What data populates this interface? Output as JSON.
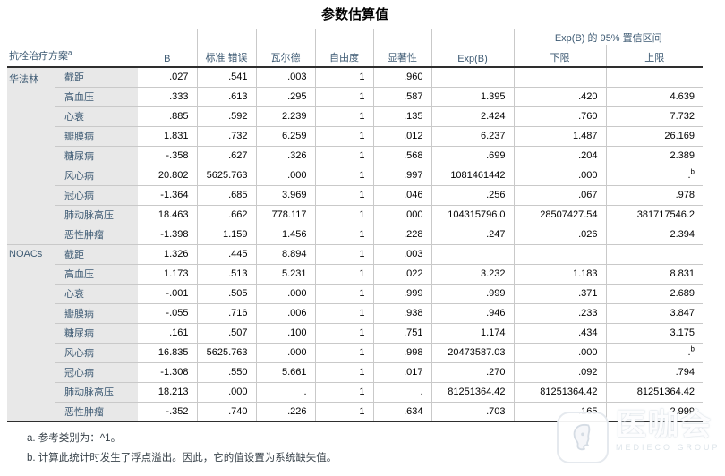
{
  "title": "参数估算值",
  "table": {
    "row_header": "抗栓治疗方案",
    "row_header_sup": "a",
    "columns": [
      "B",
      "标准 错误",
      "瓦尔德",
      "自由度",
      "显著性",
      "Exp(B)"
    ],
    "ci_spanner": "Exp(B) 的 95% 置信区间",
    "ci_lower": "下限",
    "ci_upper": "上限",
    "groups": [
      {
        "name": "华法林",
        "rows": [
          {
            "label": "截距",
            "b": ".027",
            "se": ".541",
            "wald": ".003",
            "df": "1",
            "sig": ".960",
            "exp": "",
            "lower": "",
            "upper": ""
          },
          {
            "label": "高血压",
            "b": ".333",
            "se": ".613",
            "wald": ".295",
            "df": "1",
            "sig": ".587",
            "exp": "1.395",
            "lower": ".420",
            "upper": "4.639"
          },
          {
            "label": "心衰",
            "b": ".885",
            "se": ".592",
            "wald": "2.239",
            "df": "1",
            "sig": ".135",
            "exp": "2.424",
            "lower": ".760",
            "upper": "7.732"
          },
          {
            "label": "瓣膜病",
            "b": "1.831",
            "se": ".732",
            "wald": "6.259",
            "df": "1",
            "sig": ".012",
            "exp": "6.237",
            "lower": "1.487",
            "upper": "26.169"
          },
          {
            "label": "糖尿病",
            "b": "-.358",
            "se": ".627",
            "wald": ".326",
            "df": "1",
            "sig": ".568",
            "exp": ".699",
            "lower": ".204",
            "upper": "2.389"
          },
          {
            "label": "风心病",
            "b": "20.802",
            "se": "5625.763",
            "wald": ".000",
            "df": "1",
            "sig": ".997",
            "exp": "1081461442",
            "lower": ".000",
            "upper": ".",
            "upper_sup": "b"
          },
          {
            "label": "冠心病",
            "b": "-1.364",
            "se": ".685",
            "wald": "3.969",
            "df": "1",
            "sig": ".046",
            "exp": ".256",
            "lower": ".067",
            "upper": ".978"
          },
          {
            "label": "肺动脉高压",
            "b": "18.463",
            "se": ".662",
            "wald": "778.117",
            "df": "1",
            "sig": ".000",
            "exp": "104315796.0",
            "lower": "28507427.54",
            "upper": "381717546.2"
          },
          {
            "label": "恶性肿瘤",
            "b": "-1.398",
            "se": "1.159",
            "wald": "1.456",
            "df": "1",
            "sig": ".228",
            "exp": ".247",
            "lower": ".026",
            "upper": "2.394"
          }
        ]
      },
      {
        "name": "NOACs",
        "rows": [
          {
            "label": "截距",
            "b": "1.326",
            "se": ".445",
            "wald": "8.894",
            "df": "1",
            "sig": ".003",
            "exp": "",
            "lower": "",
            "upper": ""
          },
          {
            "label": "高血压",
            "b": "1.173",
            "se": ".513",
            "wald": "5.231",
            "df": "1",
            "sig": ".022",
            "exp": "3.232",
            "lower": "1.183",
            "upper": "8.831"
          },
          {
            "label": "心衰",
            "b": "-.001",
            "se": ".505",
            "wald": ".000",
            "df": "1",
            "sig": ".999",
            "exp": ".999",
            "lower": ".371",
            "upper": "2.689"
          },
          {
            "label": "瓣膜病",
            "b": "-.055",
            "se": ".716",
            "wald": ".006",
            "df": "1",
            "sig": ".938",
            "exp": ".946",
            "lower": ".233",
            "upper": "3.847"
          },
          {
            "label": "糖尿病",
            "b": ".161",
            "se": ".507",
            "wald": ".100",
            "df": "1",
            "sig": ".751",
            "exp": "1.174",
            "lower": ".434",
            "upper": "3.175"
          },
          {
            "label": "风心病",
            "b": "16.835",
            "se": "5625.763",
            "wald": ".000",
            "df": "1",
            "sig": ".998",
            "exp": "20473587.03",
            "lower": ".000",
            "upper": ".",
            "upper_sup": "b"
          },
          {
            "label": "冠心病",
            "b": "-1.308",
            "se": ".550",
            "wald": "5.661",
            "df": "1",
            "sig": ".017",
            "exp": ".270",
            "lower": ".092",
            "upper": ".794"
          },
          {
            "label": "肺动脉高压",
            "b": "18.213",
            "se": ".000",
            "wald": ".",
            "df": "1",
            "sig": ".",
            "exp": "81251364.42",
            "lower": "81251364.42",
            "upper": "81251364.42"
          },
          {
            "label": "恶性肿瘤",
            "b": "-.352",
            "se": ".740",
            "wald": ".226",
            "df": "1",
            "sig": ".634",
            "exp": ".703",
            "lower": ".165",
            "upper": "2.999"
          }
        ]
      }
    ]
  },
  "footnotes": {
    "a": "a. 参考类别为：^1。",
    "b": "b. 计算此统计时发生了浮点溢出。因此，它的值设置为系统缺失值。"
  },
  "watermark": {
    "name": "医咖会",
    "subtitle": "MEDIECO GROUP"
  },
  "colors": {
    "header_text": "#3d5a73",
    "label_bg": "#e8e8e8",
    "grid_line": "#c9c9c9",
    "strong_line": "#2e2e2e"
  }
}
